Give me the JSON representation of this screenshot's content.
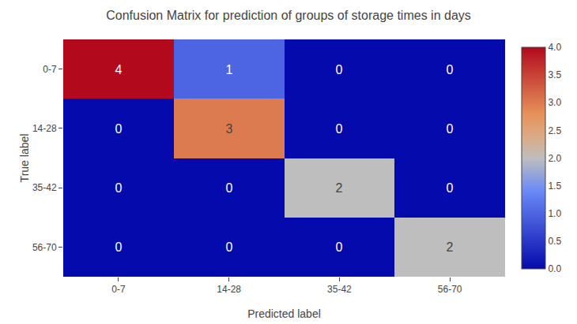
{
  "chart_data": {
    "type": "heatmap",
    "title": "Confusion Matrix for prediction of groups of storage times in days",
    "x_label": "Predicted label",
    "y_label": "True label",
    "categories": [
      "0-7",
      "14-28",
      "35-42",
      "56-70"
    ],
    "values": [
      [
        4,
        1,
        0,
        0
      ],
      [
        0,
        3,
        0,
        0
      ],
      [
        0,
        0,
        2,
        0
      ],
      [
        0,
        0,
        0,
        2
      ]
    ],
    "data_labels": true,
    "colorbar_range": [
      0,
      4
    ],
    "colorbar_ticks": [
      {
        "value": 0,
        "label": "0.0"
      },
      0.5,
      {
        "value": 1,
        "label": "1.0"
      },
      1.5,
      {
        "value": 2,
        "label": "2.0"
      },
      2.5,
      {
        "value": 3,
        "label": "3.0"
      },
      3.5,
      {
        "value": 4,
        "label": "4.0"
      }
    ]
  }
}
